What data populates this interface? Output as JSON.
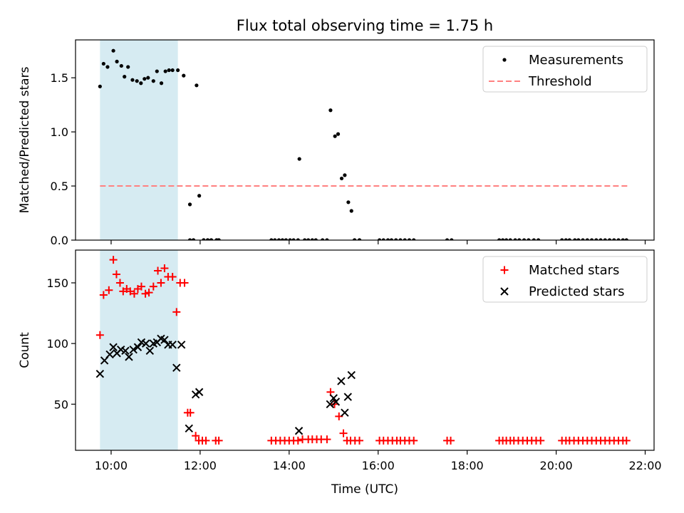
{
  "title": "Flux total observing time = 1.75 h",
  "colors": {
    "shade": "#add8e6",
    "threshold": "#ff8080",
    "matched": "#ff0000",
    "predicted": "#000000",
    "measurements": "#000000"
  },
  "chart_data": [
    {
      "id": "ratio",
      "type": "scatter",
      "ylabel": "Matched/Predicted stars",
      "xlabel": "",
      "xlim": [
        9.2,
        22.2
      ],
      "ylim": [
        0,
        1.85
      ],
      "yticks": [
        0.0,
        0.5,
        1.0,
        1.5
      ],
      "ytick_labels": [
        "0.0",
        "0.5",
        "1.0",
        "1.5"
      ],
      "xticks": [
        10,
        12,
        14,
        16,
        18,
        20,
        22
      ],
      "shaded_region": [
        9.75,
        11.5
      ],
      "threshold": {
        "label": "Threshold",
        "value": 0.5,
        "x_range": [
          9.75,
          21.6
        ]
      },
      "legend": {
        "position": "top-right",
        "entries": [
          "Measurements",
          "Threshold"
        ]
      },
      "series": [
        {
          "name": "Measurements",
          "x": [
            9.75,
            9.83,
            9.92,
            10.05,
            10.13,
            10.23,
            10.3,
            10.38,
            10.48,
            10.58,
            10.67,
            10.75,
            10.83,
            10.95,
            11.03,
            11.13,
            11.22,
            11.3,
            11.38,
            11.5,
            11.63,
            11.92,
            11.98,
            11.77,
            11.85,
            12.08,
            12.17,
            12.25,
            12.37,
            12.42,
            14.23,
            14.93,
            15.03,
            15.1,
            15.18,
            15.25,
            15.33,
            15.4,
            15.47,
            15.58
          ],
          "y": [
            1.42,
            1.63,
            1.6,
            1.75,
            1.65,
            1.61,
            1.51,
            1.6,
            1.48,
            1.47,
            1.45,
            1.49,
            1.5,
            1.47,
            1.56,
            1.45,
            1.56,
            1.57,
            1.57,
            1.57,
            1.52,
            1.43,
            0.41,
            0.33,
            0.0,
            0.0,
            0.0,
            0.0,
            0.0,
            0.0,
            0.75,
            1.2,
            0.96,
            0.98,
            0.57,
            0.6,
            0.35,
            0.27,
            0.0,
            0.0
          ],
          "zeros_x": [
            11.77,
            11.85,
            12.08,
            12.17,
            12.25,
            12.37,
            12.42,
            13.6,
            13.68,
            13.77,
            13.85,
            13.93,
            14.02,
            14.1,
            14.2,
            14.35,
            14.43,
            14.52,
            14.6,
            14.75,
            14.85,
            15.47,
            15.58,
            16.03,
            16.12,
            16.22,
            16.3,
            16.4,
            16.5,
            16.6,
            16.7,
            16.8,
            17.55,
            17.65,
            18.72,
            18.8,
            18.88,
            18.97,
            19.08,
            19.17,
            19.28,
            19.38,
            19.5,
            19.6,
            20.13,
            20.22,
            20.3,
            20.42,
            20.5,
            20.6,
            20.7,
            20.8,
            20.9,
            21.0,
            21.1,
            21.2,
            21.3,
            21.4,
            21.5,
            21.58
          ]
        }
      ]
    },
    {
      "id": "counts",
      "type": "scatter",
      "ylabel": "Count",
      "xlabel": "Time (UTC)",
      "xlim": [
        9.2,
        22.2
      ],
      "ylim": [
        12,
        177
      ],
      "yticks": [
        50,
        100,
        150
      ],
      "ytick_labels": [
        "50",
        "100",
        "150"
      ],
      "xticks": [
        10,
        12,
        14,
        16,
        18,
        20,
        22
      ],
      "xtick_labels": [
        "10:00",
        "12:00",
        "14:00",
        "16:00",
        "18:00",
        "20:00",
        "22:00"
      ],
      "shaded_region": [
        9.75,
        11.5
      ],
      "legend": {
        "position": "top-right",
        "entries": [
          "Matched stars",
          "Predicted stars"
        ]
      },
      "series": [
        {
          "name": "Matched stars",
          "marker": "plus",
          "x": [
            9.75,
            9.83,
            9.95,
            10.05,
            10.12,
            10.2,
            10.27,
            10.35,
            10.43,
            10.52,
            10.6,
            10.68,
            10.77,
            10.85,
            10.95,
            11.05,
            11.12,
            11.2,
            11.28,
            11.38,
            11.47,
            11.55,
            11.65,
            11.72,
            11.78,
            11.9,
            11.97,
            12.05,
            12.13,
            12.35,
            12.42,
            13.6,
            13.7,
            13.8,
            13.9,
            14.0,
            14.1,
            14.2,
            14.3,
            14.43,
            14.52,
            14.62,
            14.72,
            14.85,
            14.93,
            15.02,
            15.12,
            15.22,
            15.3,
            15.38,
            15.48,
            15.58,
            16.03,
            16.12,
            16.22,
            16.32,
            16.42,
            16.5,
            16.6,
            16.7,
            16.8,
            17.55,
            17.63,
            18.72,
            18.8,
            18.88,
            18.97,
            19.05,
            19.15,
            19.25,
            19.35,
            19.45,
            19.55,
            19.65,
            20.13,
            20.22,
            20.3,
            20.4,
            20.5,
            20.6,
            20.7,
            20.8,
            20.9,
            21.0,
            21.1,
            21.2,
            21.3,
            21.4,
            21.5,
            21.58
          ],
          "y": [
            107,
            140,
            144,
            169,
            157,
            150,
            143,
            145,
            143,
            141,
            145,
            147,
            141,
            142,
            147,
            160,
            150,
            162,
            155,
            155,
            126,
            150,
            150,
            43,
            43,
            24,
            20,
            20,
            20,
            20,
            20,
            20,
            20,
            20,
            20,
            20,
            20,
            20,
            21,
            21,
            21,
            21,
            21,
            21,
            60,
            50,
            40,
            26,
            20,
            20,
            20,
            20,
            20,
            20,
            20,
            20,
            20,
            20,
            20,
            20,
            20,
            20,
            20,
            20,
            20,
            20,
            20,
            20,
            20,
            20,
            20,
            20,
            20,
            20,
            20,
            20,
            20,
            20,
            20,
            20,
            20,
            20,
            20,
            20,
            20,
            20,
            20,
            20,
            20,
            20
          ]
        },
        {
          "name": "Predicted stars",
          "marker": "x",
          "x": [
            9.75,
            9.85,
            9.97,
            10.05,
            10.13,
            10.22,
            10.32,
            10.4,
            10.5,
            10.6,
            10.68,
            10.78,
            10.87,
            10.95,
            11.03,
            11.12,
            11.2,
            11.28,
            11.38,
            11.47,
            11.58,
            11.75,
            11.9,
            11.98,
            14.22,
            14.92,
            15.0,
            15.05,
            15.17,
            15.25,
            15.32,
            15.4
          ],
          "y": [
            75,
            86,
            91,
            97,
            92,
            95,
            94,
            89,
            95,
            97,
            101,
            100,
            94,
            100,
            101,
            104,
            103,
            99,
            99,
            80,
            99,
            30,
            58,
            60,
            28,
            50,
            55,
            52,
            69,
            43,
            56,
            74
          ]
        }
      ]
    }
  ]
}
